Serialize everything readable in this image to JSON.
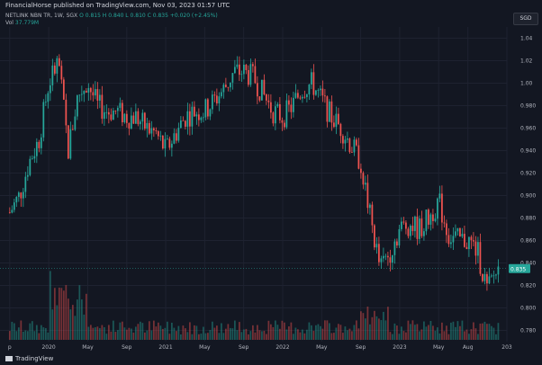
{
  "header": {
    "publisher": "FinancialHorse published on TradingView.com, Nov 03, 2023 01:57 UTC",
    "symbol": "NETLINK NBN TR, 1W, SGX",
    "ohlc": "O 0.815  H 0.840  L 0.810  C 0.835  +0.020 (+2.45%)",
    "vol_label": "Vol",
    "vol_value": "37.779M",
    "currency": "SGD"
  },
  "footer": {
    "brand": "TradingView"
  },
  "colors": {
    "background": "#131722",
    "up": "#26a69a",
    "down": "#ef5350",
    "grid": "#1e2230",
    "price_badge": "#26a69a",
    "text": "#b2b5be"
  },
  "chart_data": {
    "type": "candlestick",
    "title": "",
    "ylim": [
      0.77,
      1.05
    ],
    "y_ticks": [
      0.78,
      0.8,
      0.82,
      0.84,
      0.86,
      0.88,
      0.9,
      0.92,
      0.94,
      0.96,
      0.98,
      1.0,
      1.02,
      1.04
    ],
    "y_tick_labels": [
      "0.780",
      "0.800",
      "0.820",
      "0.840",
      "0.860",
      "0.880",
      "0.900",
      "0.920",
      "0.940",
      "0.960",
      "0.980",
      "1.00",
      "1.02",
      "1.04"
    ],
    "current_price": 0.835,
    "current_price_label": "0.835",
    "x_range": [
      "2019-08",
      "2023-12"
    ],
    "x_ticks": [
      {
        "date": "2019-09",
        "label": "p"
      },
      {
        "date": "2020-01",
        "label": "2020"
      },
      {
        "date": "2020-05",
        "label": "May"
      },
      {
        "date": "2020-09",
        "label": "Sep"
      },
      {
        "date": "2021-01",
        "label": "2021"
      },
      {
        "date": "2021-05",
        "label": "May"
      },
      {
        "date": "2021-09",
        "label": "Sep"
      },
      {
        "date": "2022-01",
        "label": "2022"
      },
      {
        "date": "2022-05",
        "label": "May"
      },
      {
        "date": "2022-09",
        "label": "Sep"
      },
      {
        "date": "2023-01",
        "label": "2023"
      },
      {
        "date": "2023-05",
        "label": "May"
      },
      {
        "date": "2023-08",
        "label": "Aug"
      },
      {
        "date": "2023-12",
        "label": "203"
      }
    ],
    "price_path": [
      [
        "2019-09",
        0.885
      ],
      [
        "2019-10",
        0.9
      ],
      [
        "2019-11",
        0.93
      ],
      [
        "2019-12",
        0.95
      ],
      [
        "2020-01",
        1.0
      ],
      [
        "2020-02",
        1.02
      ],
      [
        "2020-03",
        0.94
      ],
      [
        "2020-04",
        0.99
      ],
      [
        "2020-05",
        1.0
      ],
      [
        "2020-06",
        0.98
      ],
      [
        "2020-07",
        0.975
      ],
      [
        "2020-08",
        0.975
      ],
      [
        "2020-09",
        0.97
      ],
      [
        "2020-10",
        0.97
      ],
      [
        "2020-11",
        0.96
      ],
      [
        "2020-12",
        0.955
      ],
      [
        "2021-01",
        0.94
      ],
      [
        "2021-02",
        0.955
      ],
      [
        "2021-03",
        0.97
      ],
      [
        "2021-04",
        0.975
      ],
      [
        "2021-05",
        0.975
      ],
      [
        "2021-06",
        0.985
      ],
      [
        "2021-07",
        0.995
      ],
      [
        "2021-08",
        1.01
      ],
      [
        "2021-09",
        1.01
      ],
      [
        "2021-10",
        1.005
      ],
      [
        "2021-11",
        0.99
      ],
      [
        "2021-12",
        0.975
      ],
      [
        "2022-01",
        0.97
      ],
      [
        "2022-02",
        0.98
      ],
      [
        "2022-03",
        0.995
      ],
      [
        "2022-04",
        1.0
      ],
      [
        "2022-05",
        0.985
      ],
      [
        "2022-06",
        0.97
      ],
      [
        "2022-07",
        0.96
      ],
      [
        "2022-08",
        0.945
      ],
      [
        "2022-09",
        0.93
      ],
      [
        "2022-10",
        0.88
      ],
      [
        "2022-11",
        0.835
      ],
      [
        "2022-12",
        0.85
      ],
      [
        "2023-01",
        0.87
      ],
      [
        "2023-02",
        0.875
      ],
      [
        "2023-03",
        0.87
      ],
      [
        "2023-04",
        0.88
      ],
      [
        "2023-05",
        0.895
      ],
      [
        "2023-06",
        0.865
      ],
      [
        "2023-07",
        0.86
      ],
      [
        "2023-08",
        0.86
      ],
      [
        "2023-09",
        0.85
      ],
      [
        "2023-10",
        0.815
      ],
      [
        "2023-11",
        0.835
      ]
    ]
  }
}
